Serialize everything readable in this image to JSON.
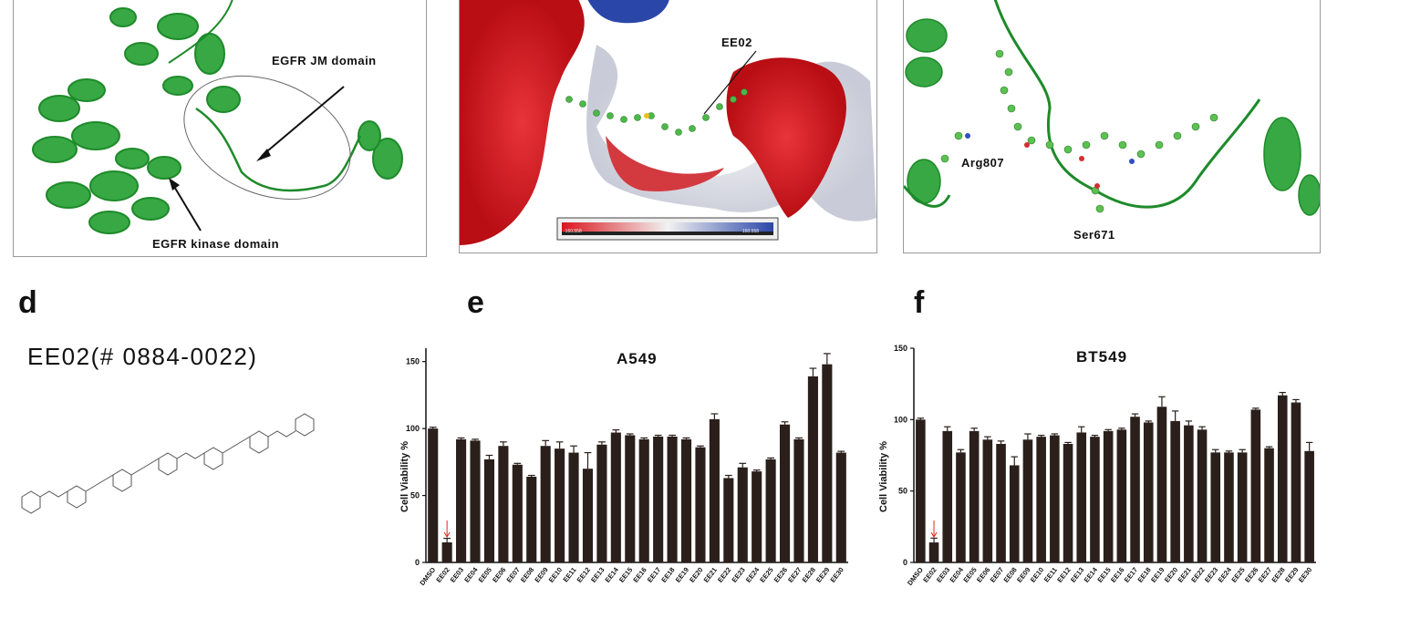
{
  "panel_a": {
    "jm_label": "EGFR JM domain",
    "kinase_label": "EGFR kinase domain"
  },
  "panel_b": {
    "ligand_label": "EE02",
    "scale_min": "-160.558",
    "scale_max": "160.558",
    "colors": {
      "negative": "#d9161c",
      "neutral": "#f2f2f2",
      "positive": "#2a46a8"
    }
  },
  "panel_c": {
    "residue_1": "Arg807",
    "residue_2": "Ser671"
  },
  "panel_d": {
    "letter": "d",
    "compound": "EE02(# 0884-0022)"
  },
  "panel_e": {
    "letter": "e"
  },
  "panel_f": {
    "letter": "f"
  },
  "chart_data": [
    {
      "type": "bar",
      "title": "A549",
      "ylabel": "Cell Viability %",
      "ylim": [
        0,
        160
      ],
      "yticks": [
        0,
        50,
        100,
        150
      ],
      "highlight_category": "EE02",
      "bar_color": "#2a1f1b",
      "arrow_color": "#e0281c",
      "categories": [
        "DMSO",
        "EE02",
        "EE03",
        "EE04",
        "EE05",
        "EE06",
        "EE07",
        "EE08",
        "EE09",
        "EE10",
        "EE11",
        "EE12",
        "EE13",
        "EE14",
        "EE15",
        "EE16",
        "EE17",
        "EE18",
        "EE19",
        "EE20",
        "EE21",
        "EE22",
        "EE23",
        "EE24",
        "EE25",
        "EE26",
        "EE27",
        "EE28",
        "EE29",
        "EE30"
      ],
      "values": [
        100,
        15,
        92,
        91,
        77,
        87,
        73,
        64,
        87,
        85,
        82,
        70,
        88,
        97,
        95,
        92,
        94,
        94,
        92,
        86,
        107,
        63,
        71,
        68,
        77,
        103,
        92,
        139,
        148,
        82
      ],
      "errors": [
        1,
        3,
        1,
        1,
        3,
        3,
        1,
        1,
        4,
        5,
        5,
        12,
        2,
        2,
        1,
        1,
        1,
        1,
        1,
        1,
        4,
        2,
        3,
        1,
        1,
        2,
        1,
        6,
        8,
        1
      ]
    },
    {
      "type": "bar",
      "title": "BT549",
      "ylabel": "Cell Viability %",
      "ylim": [
        0,
        150
      ],
      "yticks": [
        0,
        50,
        100,
        150
      ],
      "highlight_category": "EE02",
      "bar_color": "#2a1f1b",
      "arrow_color": "#e0281c",
      "categories": [
        "DMSO",
        "EE02",
        "EE03",
        "EE04",
        "EE05",
        "EE06",
        "EE07",
        "EE08",
        "EE09",
        "EE10",
        "EE11",
        "EE12",
        "EE13",
        "EE14",
        "EE15",
        "EE16",
        "EE17",
        "EE18",
        "EE19",
        "EE20",
        "EE21",
        "EE22",
        "EE23",
        "EE24",
        "EE25",
        "EE26",
        "EE27",
        "EE28",
        "EE29",
        "EE30"
      ],
      "values": [
        100,
        14,
        92,
        77,
        92,
        86,
        83,
        68,
        86,
        88,
        89,
        83,
        91,
        88,
        92,
        93,
        102,
        98,
        109,
        99,
        96,
        93,
        77,
        77,
        77,
        107,
        80,
        117,
        112,
        78
      ],
      "errors": [
        1,
        3,
        3,
        2,
        2,
        2,
        2,
        6,
        4,
        1,
        1,
        1,
        4,
        1,
        1,
        1,
        2,
        1,
        7,
        7,
        3,
        2,
        2,
        1,
        2,
        1,
        1,
        2,
        2,
        6
      ]
    }
  ]
}
